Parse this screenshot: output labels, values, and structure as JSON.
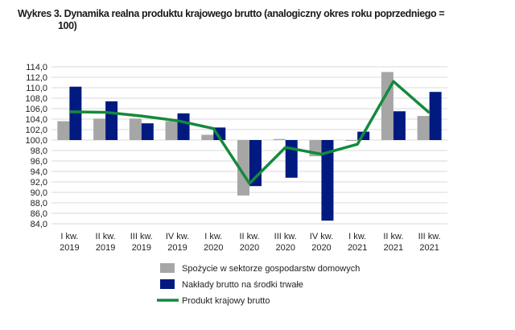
{
  "chart_data": {
    "type": "bar",
    "title_line1": "Wykres 3. Dynamika realna  produktu krajowego brutto (analogiczny okres roku poprzedniego =",
    "title_line2": "100)",
    "categories": [
      [
        "I kw.",
        "2019"
      ],
      [
        "II kw.",
        "2019"
      ],
      [
        "III kw.",
        "2019"
      ],
      [
        "IV kw.",
        "2019"
      ],
      [
        "I kw.",
        "2020"
      ],
      [
        "II kw.",
        "2020"
      ],
      [
        "III kw.",
        "2020"
      ],
      [
        "IV kw.",
        "2020"
      ],
      [
        "I kw.",
        "2021"
      ],
      [
        "II kw.",
        "2021"
      ],
      [
        "III kw.",
        "2021"
      ]
    ],
    "baseline": 100,
    "ylim": [
      84,
      114
    ],
    "yticks": [
      "84,0",
      "86,0",
      "88,0",
      "90,0",
      "92,0",
      "94,0",
      "96,0",
      "98,0",
      "100,0",
      "102,0",
      "104,0",
      "106,0",
      "108,0",
      "110,0",
      "112,0",
      "114,0"
    ],
    "grid": true,
    "legend_position": "bottom",
    "series": [
      {
        "name": "Spożycie w sektorze gospodarstw domowych",
        "kind": "bar",
        "color": "#a6a6a6",
        "values": [
          103.6,
          104.1,
          104.1,
          103.6,
          101.0,
          89.4,
          100.2,
          96.9,
          99.9,
          113.0,
          104.6
        ]
      },
      {
        "name": "Nakłady brutto na środki trwałe",
        "kind": "bar",
        "color": "#001a80",
        "values": [
          110.2,
          107.4,
          103.2,
          105.1,
          102.4,
          91.2,
          92.8,
          84.6,
          101.6,
          105.5,
          109.2
        ]
      },
      {
        "name": "Produkt krajowy brutto",
        "kind": "line",
        "color": "#138a3c",
        "values": [
          105.4,
          105.3,
          104.6,
          103.7,
          102.2,
          91.7,
          98.6,
          97.3,
          99.2,
          111.2,
          105.2
        ]
      }
    ]
  }
}
